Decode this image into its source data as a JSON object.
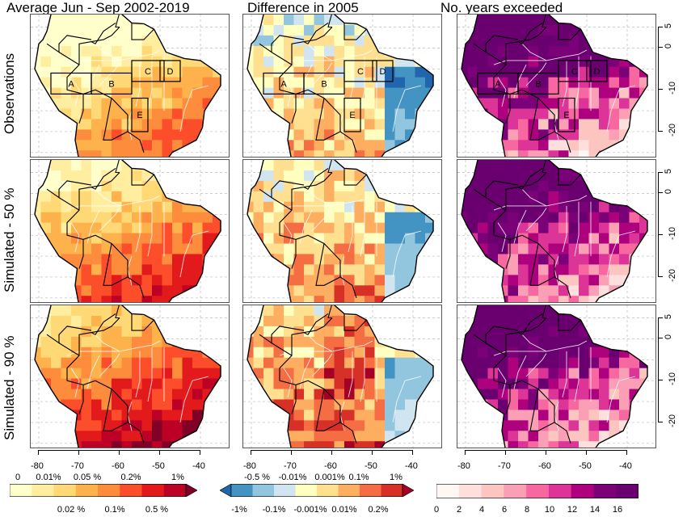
{
  "column_titles": [
    "Average Jun - Sep 2002-2019",
    "Difference in 2005",
    "No. years exceeded"
  ],
  "row_titles": [
    "Observations",
    "Simulated - 50 %",
    "Simulated - 90 %"
  ],
  "x_axis": {
    "ticks": [
      -80,
      -70,
      -60,
      -50,
      -40
    ]
  },
  "y_axis": {
    "ticks": [
      5,
      0,
      -10,
      -20
    ],
    "tick_labels": [
      "5",
      "0",
      "-10",
      "-20"
    ]
  },
  "region_labels": [
    "A",
    "B",
    "C",
    "D",
    "E"
  ],
  "colorbars": {
    "average": {
      "colors": [
        "#ffffcc",
        "#ffeda0",
        "#fed976",
        "#feb24c",
        "#fd8d3c",
        "#fc4e2a",
        "#e31a1c",
        "#bd0026",
        "#800026"
      ],
      "labels_top": [
        "0",
        "0.01%",
        "0.05 %",
        "0.2%",
        "1%"
      ],
      "labels_bottom": [
        "0.02 %",
        "0.1%",
        "0.5 %"
      ]
    },
    "difference": {
      "colors": [
        "#2166ac",
        "#4393c3",
        "#92c5de",
        "#d1e5f0",
        "#ffffbf",
        "#fee090",
        "#fdae61",
        "#f46d43",
        "#d73027",
        "#a50026"
      ],
      "labels_top": [
        "-0.5 %",
        "-0.01%",
        "0.001%",
        "0.1%",
        "1%"
      ],
      "labels_bottom": [
        "-1%",
        "-0.1%",
        "-0.001%",
        "0.01%",
        "0.2%"
      ]
    },
    "years": {
      "colors": [
        "#fff7f3",
        "#fde0dd",
        "#fcc5c0",
        "#fa9fb5",
        "#f768a1",
        "#dd3497",
        "#ae017e",
        "#7a0177",
        "#6a006f"
      ],
      "labels": [
        "0",
        "2",
        "4",
        "6",
        "8",
        "10",
        "12",
        "14",
        "16"
      ]
    }
  }
}
